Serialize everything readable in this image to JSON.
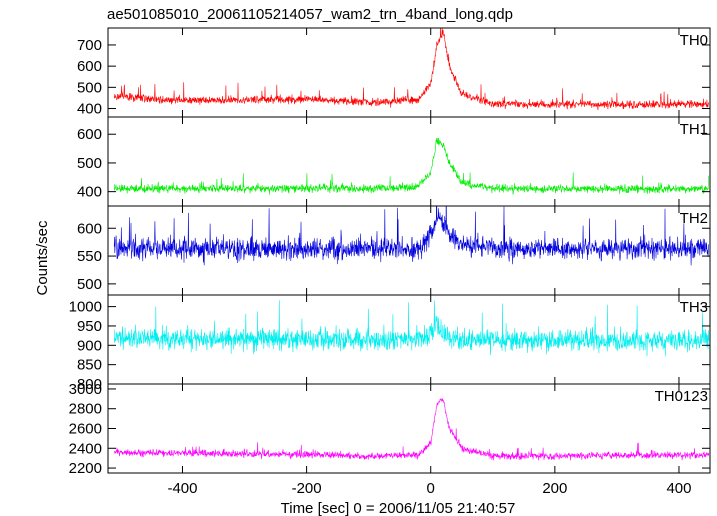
{
  "chart_data": {
    "type": "line",
    "title": "ae501085010_20061105214057_wam2_trn_4band_long.qdp",
    "xlabel": "Time [sec] 0 = 2006/11/05 21:40:57",
    "ylabel": "Counts/sec",
    "xlim": [
      -520,
      450
    ],
    "xticks": [
      -400,
      -200,
      0,
      200,
      400
    ],
    "panels": [
      {
        "name": "TH0",
        "color": "#ff0000",
        "ylim": [
          360,
          780
        ],
        "yticks": [
          400,
          500,
          600,
          700
        ],
        "baseline": 440,
        "noise": 25,
        "burst_peak": 780,
        "x": [
          -500,
          -400,
          -300,
          -200,
          -100,
          -20,
          0,
          10,
          20,
          30,
          50,
          100,
          200,
          300,
          400,
          450
        ],
        "y": [
          455,
          440,
          440,
          445,
          430,
          440,
          520,
          700,
          760,
          600,
          470,
          420,
          420,
          420,
          420,
          420
        ]
      },
      {
        "name": "TH1",
        "color": "#00ee00",
        "ylim": [
          350,
          660
        ],
        "yticks": [
          400,
          500,
          600
        ],
        "baseline": 410,
        "noise": 18,
        "burst_peak": 660,
        "x": [
          -500,
          -400,
          -300,
          -200,
          -100,
          -20,
          0,
          10,
          20,
          30,
          50,
          100,
          200,
          300,
          400,
          450
        ],
        "y": [
          410,
          410,
          412,
          412,
          410,
          415,
          470,
          580,
          560,
          500,
          430,
          410,
          410,
          410,
          410,
          410
        ]
      },
      {
        "name": "TH2",
        "color": "#0000dd",
        "ylim": [
          480,
          640
        ],
        "yticks": [
          500,
          550,
          600
        ],
        "baseline": 563,
        "noise": 25,
        "burst_peak": 640,
        "x": [
          -500,
          -400,
          -300,
          -200,
          -100,
          -20,
          0,
          10,
          20,
          30,
          50,
          100,
          200,
          300,
          400,
          450
        ],
        "y": [
          565,
          563,
          562,
          563,
          562,
          560,
          590,
          620,
          610,
          590,
          570,
          563,
          563,
          563,
          563,
          563
        ]
      },
      {
        "name": "TH3",
        "color": "#00eeee",
        "ylim": [
          800,
          1030
        ],
        "yticks": [
          800,
          850,
          900,
          950,
          1000
        ],
        "baseline": 915,
        "noise": 35,
        "burst_peak": 1010,
        "x": [
          -500,
          -400,
          -300,
          -200,
          -100,
          -20,
          0,
          10,
          20,
          30,
          50,
          100,
          200,
          300,
          400,
          450
        ],
        "y": [
          918,
          915,
          915,
          915,
          912,
          915,
          930,
          960,
          930,
          920,
          915,
          912,
          912,
          912,
          912,
          912
        ]
      },
      {
        "name": "TH0123",
        "color": "#ff00ff",
        "ylim": [
          2150,
          3050
        ],
        "yticks": [
          2200,
          2400,
          2600,
          2800,
          3000
        ],
        "baseline": 2340,
        "noise": 45,
        "burst_peak": 3000,
        "x": [
          -500,
          -400,
          -300,
          -200,
          -100,
          -20,
          0,
          10,
          20,
          30,
          50,
          100,
          200,
          300,
          400,
          450
        ],
        "y": [
          2360,
          2350,
          2340,
          2340,
          2320,
          2330,
          2450,
          2850,
          2900,
          2600,
          2400,
          2320,
          2320,
          2330,
          2330,
          2330
        ]
      }
    ]
  }
}
